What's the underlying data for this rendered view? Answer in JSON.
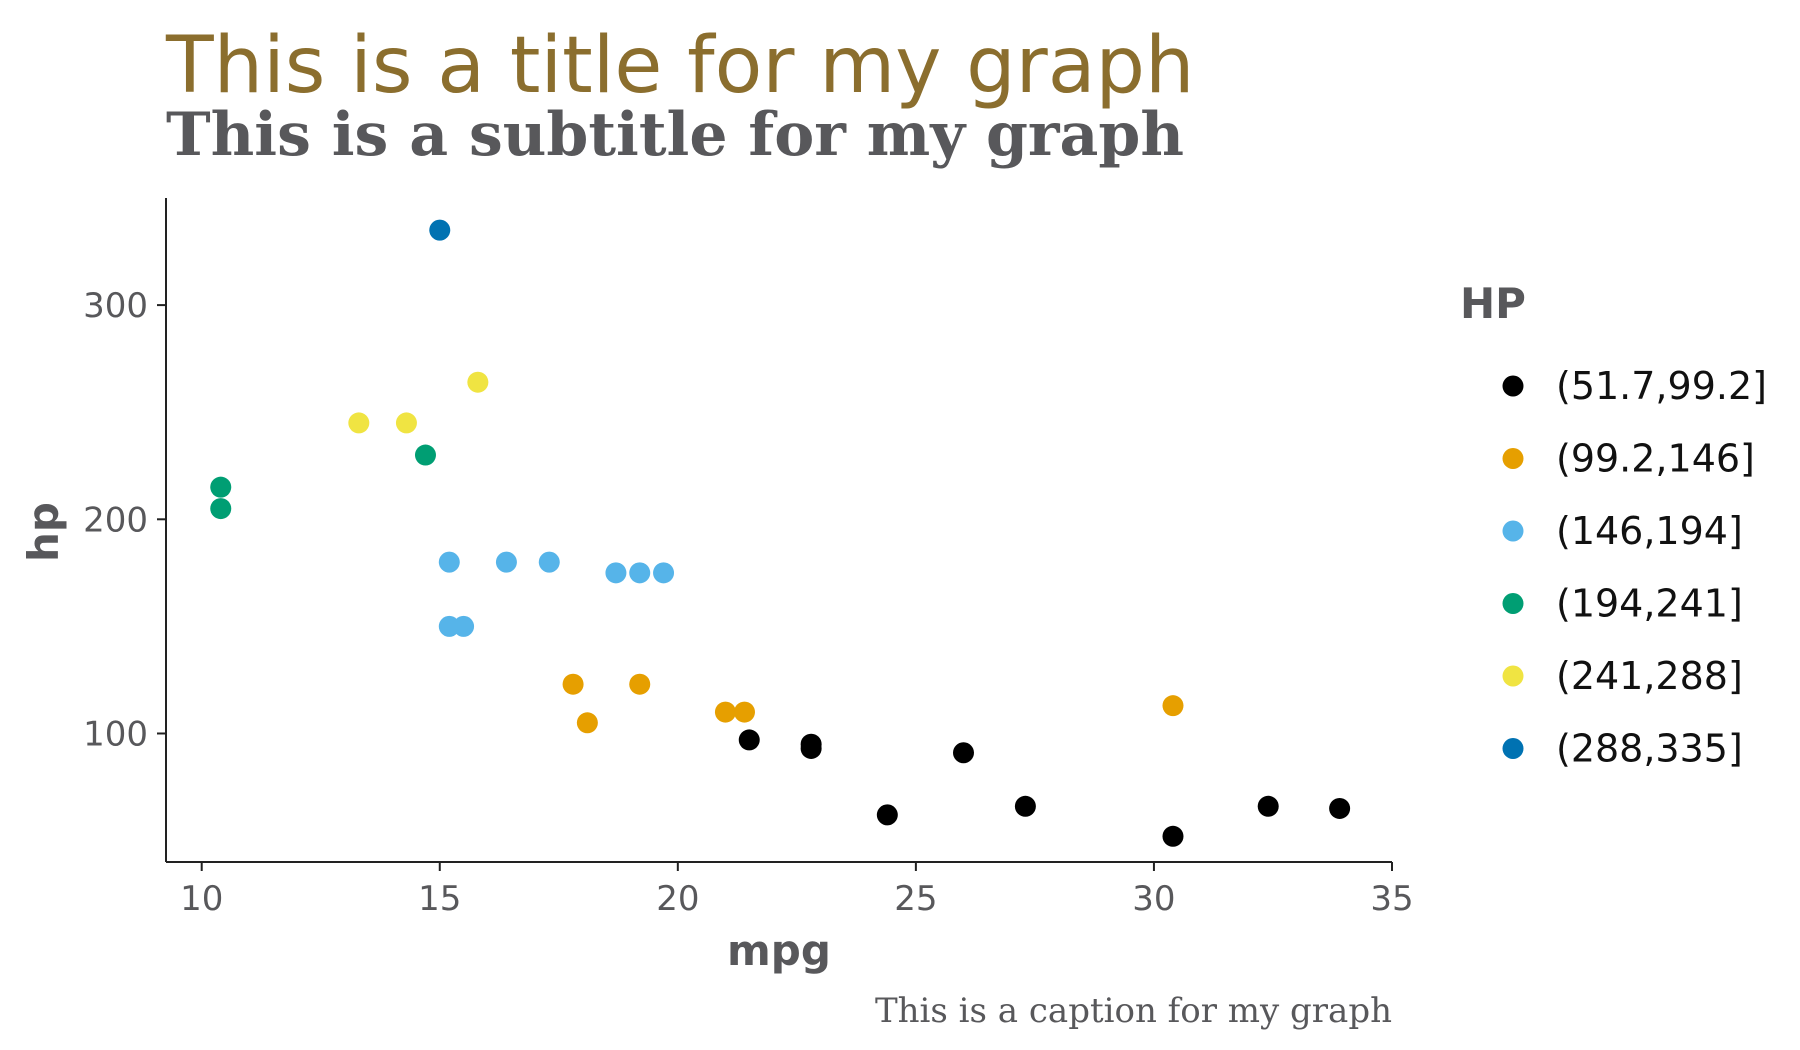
{
  "chart_data": {
    "type": "scatter",
    "title": "This is a title for my graph",
    "subtitle": "This is a subtitle for my graph",
    "caption": "This is a caption for my graph",
    "xlabel": "mpg",
    "ylabel": "hp",
    "xlim": [
      9.25,
      35
    ],
    "ylim": [
      40,
      350
    ],
    "xticks": [
      10,
      15,
      20,
      25,
      30,
      35
    ],
    "yticks": [
      100,
      200,
      300
    ],
    "grid": false,
    "legend_title": "HP",
    "legend_position": "right",
    "series": [
      {
        "name": "(51.7,99.2]",
        "color": "#000000",
        "points": [
          [
            21.5,
            97
          ],
          [
            22.8,
            95
          ],
          [
            22.8,
            93
          ],
          [
            26.0,
            91
          ],
          [
            24.4,
            62
          ],
          [
            27.3,
            66
          ],
          [
            30.4,
            52
          ],
          [
            32.4,
            66
          ],
          [
            33.9,
            65
          ]
        ]
      },
      {
        "name": "(99.2,146]",
        "color": "#E69F00",
        "points": [
          [
            17.8,
            123
          ],
          [
            19.2,
            123
          ],
          [
            18.1,
            105
          ],
          [
            21.0,
            110
          ],
          [
            21.4,
            110
          ],
          [
            30.4,
            113
          ]
        ]
      },
      {
        "name": "(146,194]",
        "color": "#56B4E9",
        "points": [
          [
            15.2,
            180
          ],
          [
            16.4,
            180
          ],
          [
            17.3,
            180
          ],
          [
            18.7,
            175
          ],
          [
            19.2,
            175
          ],
          [
            19.7,
            175
          ],
          [
            15.2,
            150
          ],
          [
            15.5,
            150
          ]
        ]
      },
      {
        "name": "(194,241]",
        "color": "#009E73",
        "points": [
          [
            10.4,
            215
          ],
          [
            10.4,
            205
          ],
          [
            14.7,
            230
          ]
        ]
      },
      {
        "name": "(241,288]",
        "color": "#F0E442",
        "points": [
          [
            13.3,
            245
          ],
          [
            14.3,
            245
          ],
          [
            15.8,
            264
          ]
        ]
      },
      {
        "name": "(288,335]",
        "color": "#0072B2",
        "points": [
          [
            15.0,
            335
          ]
        ]
      }
    ]
  }
}
